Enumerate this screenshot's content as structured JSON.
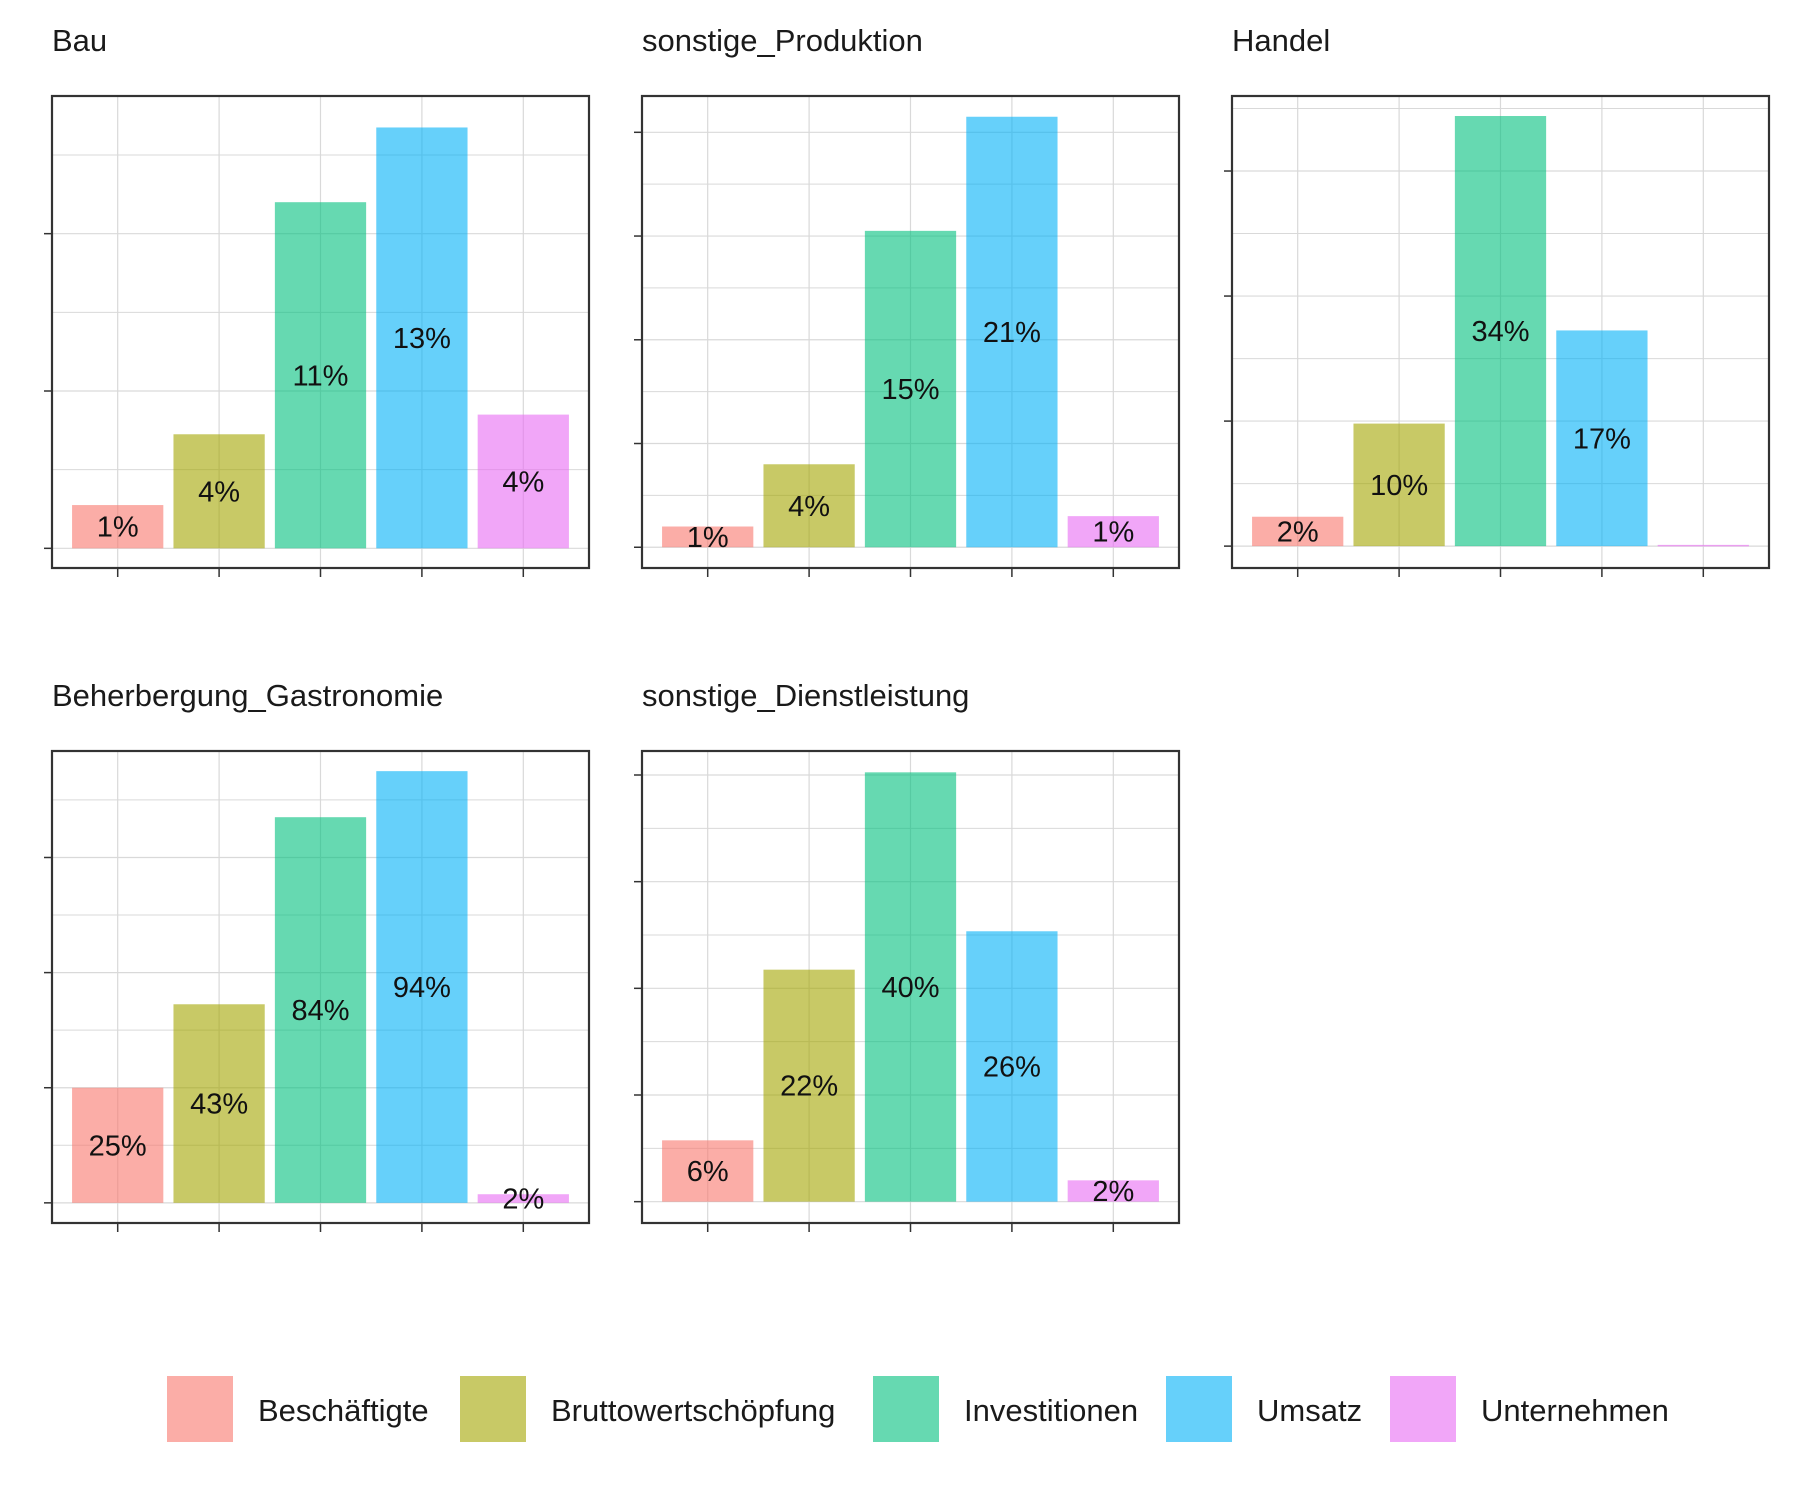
{
  "chart_data": [
    {
      "type": "bar",
      "title": "Bau",
      "categories": [
        "Beschäftigte",
        "Bruttowertschöpfung",
        "Investitionen",
        "Umsatz",
        "Unternehmen"
      ],
      "values": [
        1.1,
        2.9,
        8.8,
        10.7,
        3.4
      ],
      "labels": [
        "1%",
        "4%",
        "11%",
        "13%",
        "4%"
      ],
      "ylim": [
        -0.5,
        11.5
      ],
      "yticks": [
        0,
        4,
        8
      ],
      "ygrid_minor": [
        2,
        6,
        10
      ],
      "grid": true
    },
    {
      "type": "bar",
      "title": "sonstige_Produktion",
      "categories": [
        "Beschäftigte",
        "Bruttowertschöpfung",
        "Investitionen",
        "Umsatz",
        "Unternehmen"
      ],
      "values": [
        0.4,
        1.6,
        6.1,
        8.3,
        0.6
      ],
      "labels": [
        "1%",
        "4%",
        "15%",
        "21%",
        "1%"
      ],
      "ylim": [
        -0.4,
        8.7
      ],
      "yticks": [
        0,
        2,
        4,
        6,
        8
      ],
      "ygrid_minor": [
        1,
        3,
        5,
        7
      ],
      "grid": true
    },
    {
      "type": "bar",
      "title": "Handel",
      "categories": [
        "Beschäftigte",
        "Bruttowertschöpfung",
        "Investitionen",
        "Umsatz",
        "Unternehmen"
      ],
      "values": [
        0.47,
        1.96,
        6.88,
        3.45,
        0.02
      ],
      "labels": [
        "2%",
        "10%",
        "34%",
        "17%",
        ""
      ],
      "ylim": [
        -0.35,
        7.2
      ],
      "yticks": [
        0,
        2,
        4,
        6
      ],
      "ygrid_minor": [
        1,
        3,
        5,
        7
      ],
      "grid": true
    },
    {
      "type": "bar",
      "title": "Beherbergung_Gastronomie",
      "categories": [
        "Beschäftigte",
        "Bruttowertschöpfung",
        "Investitionen",
        "Umsatz",
        "Unternehmen"
      ],
      "values": [
        2.0,
        3.45,
        6.7,
        7.5,
        0.15
      ],
      "labels": [
        "25%",
        "43%",
        "84%",
        "94%",
        "2%"
      ],
      "ylim": [
        -0.35,
        7.85
      ],
      "yticks": [
        0,
        2,
        4,
        6
      ],
      "ygrid_minor": [
        1,
        3,
        5,
        7
      ],
      "grid": true
    },
    {
      "type": "bar",
      "title": "sonstige_Dienstleistung",
      "categories": [
        "Beschäftigte",
        "Bruttowertschöpfung",
        "Investitionen",
        "Umsatz",
        "Unternehmen"
      ],
      "values": [
        1.15,
        4.35,
        8.05,
        5.07,
        0.4
      ],
      "labels": [
        "6%",
        "22%",
        "40%",
        "26%",
        "2%"
      ],
      "ylim": [
        -0.4,
        8.45
      ],
      "yticks": [
        0,
        2,
        4,
        6,
        8
      ],
      "ygrid_minor": [
        1,
        3,
        5,
        7
      ],
      "grid": true
    }
  ],
  "legend": {
    "position": "bottom",
    "items": [
      {
        "label": "Beschäftigte",
        "color": "#F8766D"
      },
      {
        "label": "Bruttowertschöpfung",
        "color": "#A3A500"
      },
      {
        "label": "Investitionen",
        "color": "#00BF7D"
      },
      {
        "label": "Umsatz",
        "color": "#00B0F6"
      },
      {
        "label": "Unternehmen",
        "color": "#E76BF3"
      }
    ]
  },
  "style": {
    "bar_opacity": 0.6,
    "grid_color": "#d9d9d9",
    "frame_color": "#333333"
  }
}
